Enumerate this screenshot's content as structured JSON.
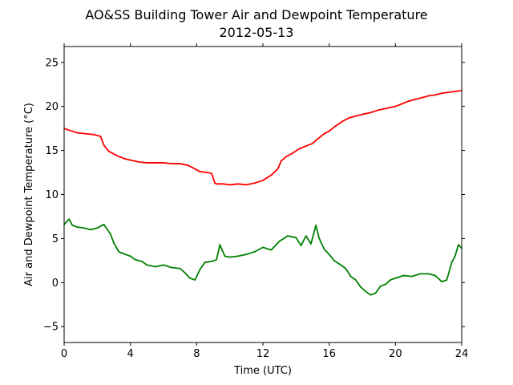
{
  "chart_data": {
    "type": "line",
    "title": "AO&SS Building Tower Air and Dewpoint Temperature",
    "subtitle": "2012-05-13",
    "xlabel": "Time (UTC)",
    "ylabel": "Air and Dewpoint Temperature (°C)",
    "xlim": [
      0,
      24
    ],
    "ylim": [
      -6.8,
      26.8
    ],
    "xticks": [
      0,
      4,
      8,
      12,
      16,
      20,
      24
    ],
    "yticks": [
      -5,
      0,
      5,
      10,
      15,
      20,
      25
    ],
    "grid": false,
    "legend": false,
    "series": [
      {
        "color": "#ff0000",
        "x": [
          0,
          0.3,
          0.8,
          1.3,
          1.8,
          2.2,
          2.4,
          2.7,
          3.2,
          3.6,
          4.0,
          4.5,
          5.0,
          5.5,
          6.0,
          6.5,
          7.0,
          7.5,
          7.8,
          8.2,
          8.6,
          8.9,
          9.1,
          9.2,
          9.6,
          10.0,
          10.5,
          11.0,
          11.5,
          12.0,
          12.5,
          12.9,
          13.1,
          13.4,
          13.8,
          14.2,
          14.6,
          15.0,
          15.3,
          15.7,
          16.0,
          16.4,
          16.8,
          17.2,
          17.6,
          18.0,
          18.5,
          19.0,
          19.5,
          20.0,
          20.4,
          20.8,
          21.2,
          21.6,
          22.0,
          22.4,
          22.8,
          23.2,
          23.6,
          24.0
        ],
        "values": [
          17.5,
          17.3,
          17.0,
          16.9,
          16.8,
          16.6,
          15.6,
          14.9,
          14.4,
          14.1,
          13.9,
          13.7,
          13.6,
          13.6,
          13.6,
          13.5,
          13.5,
          13.3,
          13.0,
          12.6,
          12.5,
          12.4,
          11.3,
          11.2,
          11.2,
          11.1,
          11.2,
          11.1,
          11.3,
          11.6,
          12.2,
          12.9,
          13.8,
          14.3,
          14.7,
          15.2,
          15.5,
          15.8,
          16.3,
          16.9,
          17.2,
          17.8,
          18.3,
          18.7,
          18.9,
          19.1,
          19.3,
          19.6,
          19.8,
          20.0,
          20.3,
          20.6,
          20.8,
          21.0,
          21.2,
          21.3,
          21.5,
          21.6,
          21.7,
          21.8
        ]
      },
      {
        "color": "#008000",
        "x": [
          0,
          0.3,
          0.5,
          0.8,
          1.2,
          1.6,
          2.0,
          2.4,
          2.8,
          3.0,
          3.3,
          3.7,
          4.0,
          4.3,
          4.7,
          5.0,
          5.5,
          6.0,
          6.5,
          7.0,
          7.3,
          7.6,
          7.9,
          8.2,
          8.5,
          8.9,
          9.2,
          9.4,
          9.7,
          10.0,
          10.5,
          11.0,
          11.5,
          12.0,
          12.5,
          13.0,
          13.5,
          14.0,
          14.3,
          14.6,
          14.9,
          15.2,
          15.4,
          15.7,
          16.0,
          16.3,
          16.7,
          17.0,
          17.3,
          17.6,
          17.9,
          18.2,
          18.5,
          18.8,
          19.1,
          19.4,
          19.7,
          20.0,
          20.5,
          21.0,
          21.5,
          22.0,
          22.4,
          22.8,
          23.1,
          23.4,
          23.6,
          23.8,
          24.0
        ],
        "values": [
          6.6,
          7.2,
          6.5,
          6.3,
          6.2,
          6.0,
          6.2,
          6.6,
          5.5,
          4.5,
          3.5,
          3.2,
          3.0,
          2.6,
          2.4,
          2.0,
          1.8,
          2.0,
          1.7,
          1.6,
          1.1,
          0.5,
          0.3,
          1.5,
          2.3,
          2.4,
          2.6,
          4.3,
          3.0,
          2.9,
          3.0,
          3.2,
          3.5,
          4.0,
          3.7,
          4.7,
          5.3,
          5.1,
          4.2,
          5.3,
          4.4,
          6.5,
          5.0,
          3.8,
          3.2,
          2.5,
          2.0,
          1.6,
          0.7,
          0.3,
          -0.5,
          -1.0,
          -1.4,
          -1.2,
          -0.4,
          -0.2,
          0.3,
          0.5,
          0.8,
          0.7,
          1.0,
          1.0,
          0.8,
          0.1,
          0.3,
          2.3,
          3.0,
          4.3,
          3.9
        ]
      }
    ]
  }
}
